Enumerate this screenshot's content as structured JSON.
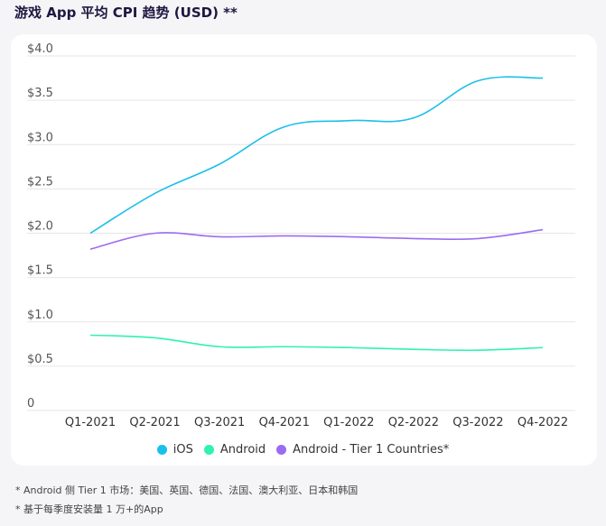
{
  "title": "游戏 App 平均 CPI 趋势 (USD) **",
  "chart_data": {
    "type": "line",
    "title": "游戏 App 平均 CPI 趋势 (USD) **",
    "categories": [
      "Q1-2021",
      "Q2-2021",
      "Q3-2021",
      "Q4-2021",
      "Q1-2022",
      "Q2-2022",
      "Q3-2022",
      "Q4-2022"
    ],
    "ylim": [
      0,
      4.0
    ],
    "yticks": [
      0,
      0.5,
      1.0,
      1.5,
      2.0,
      2.5,
      3.0,
      3.5,
      4.0
    ],
    "ytick_labels": [
      "0",
      "$0.5",
      "$1.0",
      "$1.5",
      "$2.0",
      "$2.5",
      "$3.0",
      "$3.5",
      "$4.0"
    ],
    "grid": true,
    "legend_position": "bottom",
    "series": [
      {
        "name": "iOS",
        "color": "#1cbfea",
        "values": [
          2.0,
          2.45,
          2.78,
          3.2,
          3.27,
          3.3,
          3.72,
          3.75
        ]
      },
      {
        "name": "Android",
        "color": "#2ff2b1",
        "values": [
          0.85,
          0.82,
          0.72,
          0.72,
          0.71,
          0.69,
          0.68,
          0.71
        ]
      },
      {
        "name": "Android - Tier 1 Countries*",
        "color": "#9b6cf0",
        "values": [
          1.82,
          2.0,
          1.96,
          1.97,
          1.96,
          1.94,
          1.94,
          2.04
        ]
      }
    ]
  },
  "footnotes": [
    "* Android 侧 Tier 1 市场：美国、英国、德国、法国、澳大利亚、日本和韩国",
    "* 基于每季度安装量 1 万+的App"
  ]
}
